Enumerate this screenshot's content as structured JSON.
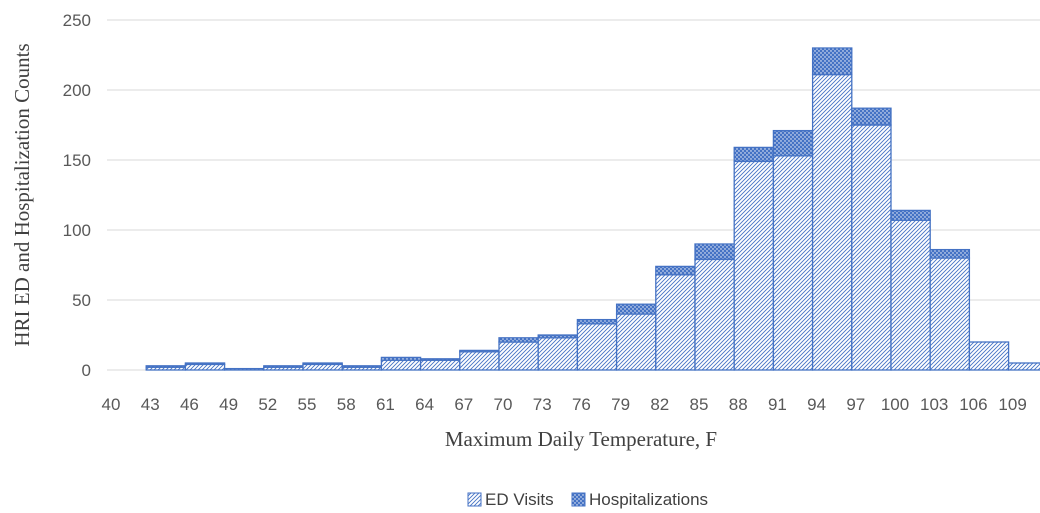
{
  "chart_data": {
    "type": "bar",
    "stacked": true,
    "title": "",
    "xlabel": "Maximum Daily Temperature, F",
    "ylabel": "HRI ED and Hospitalization Counts",
    "ylim": [
      0,
      250
    ],
    "yticks": [
      "0",
      "50",
      "100",
      "150",
      "200",
      "250"
    ],
    "x_tick_labels": [
      "40",
      "43",
      "46",
      "49",
      "52",
      "55",
      "58",
      "61",
      "64",
      "67",
      "70",
      "73",
      "76",
      "79",
      "82",
      "85",
      "88",
      "91",
      "94",
      "97",
      "100",
      "103",
      "106",
      "109"
    ],
    "bins": [
      {
        "start": 40,
        "end": 43
      },
      {
        "start": 43,
        "end": 46
      },
      {
        "start": 46,
        "end": 49
      },
      {
        "start": 49,
        "end": 52
      },
      {
        "start": 52,
        "end": 55
      },
      {
        "start": 55,
        "end": 58
      },
      {
        "start": 58,
        "end": 61
      },
      {
        "start": 61,
        "end": 64
      },
      {
        "start": 64,
        "end": 67
      },
      {
        "start": 67,
        "end": 70
      },
      {
        "start": 70,
        "end": 73
      },
      {
        "start": 73,
        "end": 76
      },
      {
        "start": 76,
        "end": 79
      },
      {
        "start": 79,
        "end": 82
      },
      {
        "start": 82,
        "end": 85
      },
      {
        "start": 85,
        "end": 88
      },
      {
        "start": 88,
        "end": 91
      },
      {
        "start": 91,
        "end": 94
      },
      {
        "start": 94,
        "end": 97
      },
      {
        "start": 97,
        "end": 100
      },
      {
        "start": 100,
        "end": 103
      },
      {
        "start": 103,
        "end": 106
      },
      {
        "start": 106,
        "end": 109
      },
      {
        "start": 109,
        "end": 112
      }
    ],
    "series": [
      {
        "name": "ED Visits",
        "values": [
          0,
          2,
          4,
          1,
          2,
          4,
          2,
          7,
          7,
          13,
          20,
          23,
          33,
          40,
          68,
          79,
          149,
          153,
          211,
          175,
          107,
          80,
          20,
          5
        ]
      },
      {
        "name": "Hospitalizations",
        "values": [
          0,
          1,
          1,
          0,
          1,
          1,
          1,
          2,
          1,
          1,
          3,
          2,
          3,
          7,
          6,
          11,
          10,
          18,
          19,
          12,
          7,
          6,
          0,
          0
        ]
      }
    ],
    "legend_position": "bottom-center",
    "gridlines": "horizontal"
  },
  "colors": {
    "edge": "#4472c4",
    "hatch": "#4472c4",
    "fill": "#ffffff",
    "grid": "#d9d9d9",
    "hosp_fill": "#4472c4",
    "hosp_dot": "#ffffff"
  }
}
